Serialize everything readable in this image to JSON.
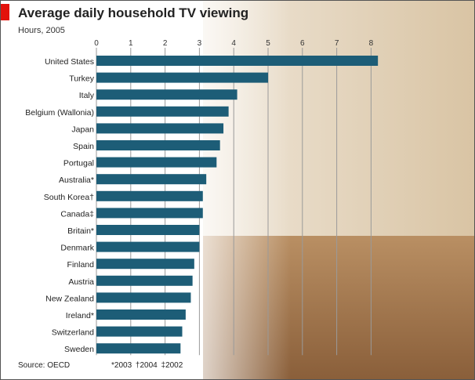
{
  "header": {
    "title": "Average daily household TV viewing",
    "subtitle": "Hours, 2005"
  },
  "footer": {
    "source": "Source: OECD",
    "footnote": "*2003 †2004 ‡2002"
  },
  "colors": {
    "bar": "#1d5d77",
    "accent": "#e3120b"
  },
  "chart_data": {
    "type": "bar",
    "orientation": "horizontal",
    "title": "Average daily household TV viewing",
    "subtitle": "Hours, 2005",
    "xlim": [
      0,
      8
    ],
    "xticks": [
      0,
      1,
      2,
      3,
      4,
      5,
      6,
      7,
      8
    ],
    "grid": true,
    "categories": [
      "United States",
      "Turkey",
      "Italy",
      "Belgium (Wallonia)",
      "Japan",
      "Spain",
      "Portugal",
      "Australia*",
      "South Korea†",
      "Canada‡",
      "Britain*",
      "Denmark",
      "Finland",
      "Austria",
      "New Zealand",
      "Ireland*",
      "Switzerland",
      "Sweden"
    ],
    "values": [
      8.2,
      5.0,
      4.1,
      3.85,
      3.7,
      3.6,
      3.5,
      3.2,
      3.1,
      3.1,
      3.0,
      3.0,
      2.85,
      2.8,
      2.75,
      2.6,
      2.5,
      2.45
    ]
  }
}
